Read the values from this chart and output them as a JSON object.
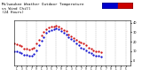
{
  "title": "Milwaukee Weather Outdoor Temperature\nvs Wind Chill\n(24 Hours)",
  "title_fontsize": 3.0,
  "background_color": "#ffffff",
  "grid_color": "#aaaaaa",
  "temp_color": "#cc0000",
  "windchill_color": "#0000cc",
  "legend_temp_color": "#cc0000",
  "legend_wc_color": "#0000cc",
  "temp": [
    18,
    17,
    16,
    15,
    13,
    13,
    12,
    13,
    14,
    18,
    22,
    27,
    30,
    33,
    35,
    36,
    36,
    37,
    36,
    34,
    32,
    31,
    28,
    26,
    24,
    22,
    20,
    19,
    18,
    16,
    14,
    13,
    11,
    10,
    10,
    9
  ],
  "windchill": [
    10,
    10,
    9,
    8,
    6,
    6,
    5,
    5,
    7,
    11,
    16,
    21,
    25,
    29,
    31,
    32,
    33,
    34,
    33,
    31,
    29,
    28,
    25,
    23,
    21,
    18,
    16,
    14,
    13,
    11,
    9,
    8,
    6,
    5,
    5,
    4
  ],
  "n_points": 36,
  "xlim": [
    0,
    47
  ],
  "ylim": [
    -5,
    42
  ],
  "ytick_values": [
    0,
    10,
    20,
    30,
    40
  ],
  "ytick_labels": [
    "0",
    "10",
    "20",
    "30",
    "40"
  ],
  "xtick_positions": [
    1,
    3,
    5,
    7,
    9,
    11,
    13,
    15,
    17,
    19,
    21,
    23,
    25,
    27,
    29,
    31,
    33,
    35,
    37,
    39,
    41,
    43,
    45
  ],
  "xtick_labels": [
    "1",
    "3",
    "5",
    "7",
    "9",
    "1",
    "3",
    "5",
    "7",
    "9",
    "1",
    "3",
    "5",
    "7",
    "9",
    "1",
    "3",
    "5",
    "7",
    "9",
    "1",
    "3",
    "5"
  ],
  "vgrid_positions": [
    5,
    9,
    13,
    17,
    21,
    25,
    29,
    33,
    37,
    41,
    45
  ],
  "marker_size": 1.2
}
